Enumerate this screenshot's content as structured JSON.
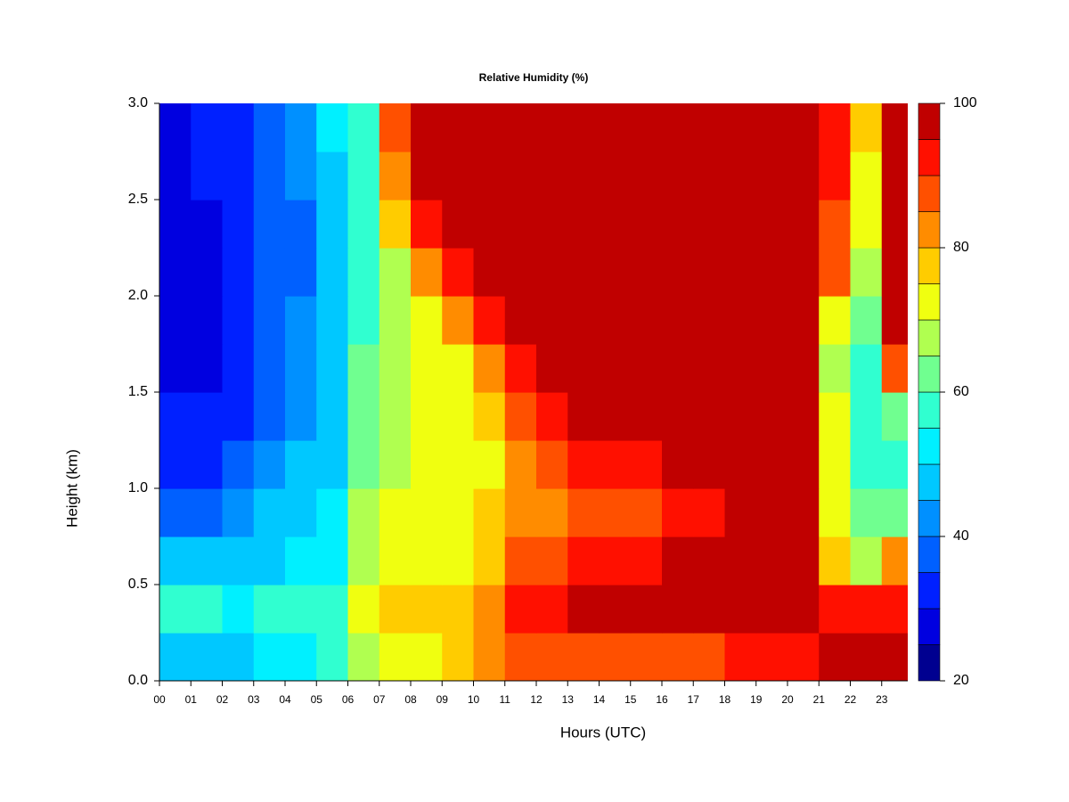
{
  "chart_data": {
    "type": "contour",
    "title": "Relative Humidity (%)",
    "x_label": "Hours (UTC)",
    "y_label": "Height (km)",
    "x": [
      0.5,
      1.5,
      2.5,
      3.5,
      4.5,
      5.5,
      6.5,
      7.5,
      8.5,
      9.5,
      10.5,
      11.5,
      12.5,
      13.5,
      14.5,
      15.5,
      16.5,
      17.5,
      18.5,
      19.5,
      20.5,
      21.5,
      22.5,
      23.5
    ],
    "y": [
      0.125,
      0.375,
      0.625,
      0.875,
      1.125,
      1.375,
      1.625,
      1.875,
      2.125,
      2.375,
      2.625,
      2.875
    ],
    "z": [
      [
        48,
        45,
        45,
        52,
        52,
        55,
        68,
        70,
        72,
        75,
        80,
        86,
        86,
        88,
        88,
        88,
        88,
        88,
        90,
        90,
        92,
        97,
        97,
        96
      ],
      [
        55,
        55,
        52,
        55,
        58,
        55,
        72,
        76,
        76,
        78,
        82,
        90,
        92,
        96,
        96,
        96,
        96,
        96,
        97,
        97,
        97,
        92,
        90,
        92
      ],
      [
        45,
        45,
        45,
        48,
        50,
        52,
        68,
        72,
        72,
        72,
        78,
        86,
        88,
        92,
        92,
        92,
        95,
        95,
        97,
        97,
        97,
        75,
        65,
        80
      ],
      [
        38,
        38,
        40,
        45,
        48,
        50,
        65,
        70,
        70,
        72,
        75,
        82,
        82,
        88,
        88,
        88,
        90,
        90,
        95,
        95,
        97,
        70,
        62,
        62
      ],
      [
        32,
        32,
        35,
        40,
        45,
        48,
        62,
        68,
        70,
        70,
        72,
        80,
        85,
        92,
        92,
        92,
        95,
        95,
        98,
        98,
        98,
        72,
        58,
        58
      ],
      [
        30,
        30,
        32,
        38,
        42,
        45,
        62,
        68,
        70,
        70,
        75,
        85,
        92,
        97,
        97,
        97,
        98,
        98,
        98,
        98,
        98,
        70,
        55,
        62
      ],
      [
        28,
        28,
        30,
        36,
        40,
        45,
        60,
        66,
        70,
        72,
        80,
        90,
        98,
        98,
        98,
        98,
        98,
        98,
        98,
        98,
        98,
        68,
        55,
        88
      ],
      [
        28,
        28,
        30,
        35,
        40,
        45,
        58,
        65,
        72,
        80,
        90,
        98,
        98,
        98,
        98,
        98,
        98,
        98,
        98,
        98,
        98,
        70,
        60,
        95
      ],
      [
        28,
        28,
        30,
        35,
        38,
        45,
        58,
        68,
        82,
        92,
        98,
        98,
        98,
        98,
        98,
        98,
        98,
        98,
        98,
        98,
        98,
        85,
        68,
        97
      ],
      [
        28,
        28,
        32,
        35,
        38,
        47,
        57,
        75,
        92,
        98,
        98,
        98,
        98,
        98,
        98,
        98,
        98,
        98,
        98,
        98,
        98,
        88,
        70,
        98
      ],
      [
        28,
        30,
        32,
        36,
        40,
        48,
        56,
        80,
        96,
        98,
        98,
        98,
        98,
        98,
        98,
        98,
        98,
        98,
        98,
        98,
        98,
        90,
        72,
        98
      ],
      [
        28,
        30,
        32,
        36,
        42,
        50,
        56,
        85,
        98,
        98,
        98,
        98,
        98,
        98,
        98,
        98,
        98,
        98,
        98,
        98,
        98,
        92,
        75,
        98
      ]
    ],
    "levels": [
      20,
      25,
      30,
      35,
      40,
      45,
      50,
      55,
      60,
      65,
      70,
      75,
      80,
      85,
      90,
      95,
      100
    ],
    "colors": [
      "#000090",
      "#0000E0",
      "#0020FF",
      "#0060FF",
      "#0090FF",
      "#00C8FF",
      "#00F0FF",
      "#30FFD0",
      "#70FF90",
      "#B0FF50",
      "#F0FF10",
      "#FFCC00",
      "#FF8C00",
      "#FF5000",
      "#FF1000",
      "#C00000",
      "#800000"
    ],
    "xlim": [
      0,
      23.83
    ],
    "ylim": [
      0,
      3
    ],
    "xticks": [
      {
        "value": 0,
        "label": "00"
      },
      {
        "value": 1,
        "label": "01"
      },
      {
        "value": 2,
        "label": "02"
      },
      {
        "value": 3,
        "label": "03"
      },
      {
        "value": 4,
        "label": "04"
      },
      {
        "value": 5,
        "label": "05"
      },
      {
        "value": 6,
        "label": "06"
      },
      {
        "value": 7,
        "label": "07"
      },
      {
        "value": 8,
        "label": "08"
      },
      {
        "value": 9,
        "label": "09"
      },
      {
        "value": 10,
        "label": "10"
      },
      {
        "value": 11,
        "label": "11"
      },
      {
        "value": 12,
        "label": "12"
      },
      {
        "value": 13,
        "label": "13"
      },
      {
        "value": 14,
        "label": "14"
      },
      {
        "value": 15,
        "label": "15"
      },
      {
        "value": 16,
        "label": "16"
      },
      {
        "value": 17,
        "label": "17"
      },
      {
        "value": 18,
        "label": "18"
      },
      {
        "value": 19,
        "label": "19"
      },
      {
        "value": 20,
        "label": "20"
      },
      {
        "value": 21,
        "label": "21"
      },
      {
        "value": 22,
        "label": "22"
      },
      {
        "value": 23,
        "label": "23"
      }
    ],
    "yticks": [
      {
        "value": 0,
        "label": "0.0"
      },
      {
        "value": 0.5,
        "label": "0.5"
      },
      {
        "value": 1,
        "label": "1.0"
      },
      {
        "value": 1.5,
        "label": "1.5"
      },
      {
        "value": 2,
        "label": "2.0"
      },
      {
        "value": 2.5,
        "label": "2.5"
      },
      {
        "value": 3,
        "label": "3.0"
      }
    ],
    "colorbar_ticks": [
      20,
      40,
      60,
      80,
      100
    ]
  }
}
